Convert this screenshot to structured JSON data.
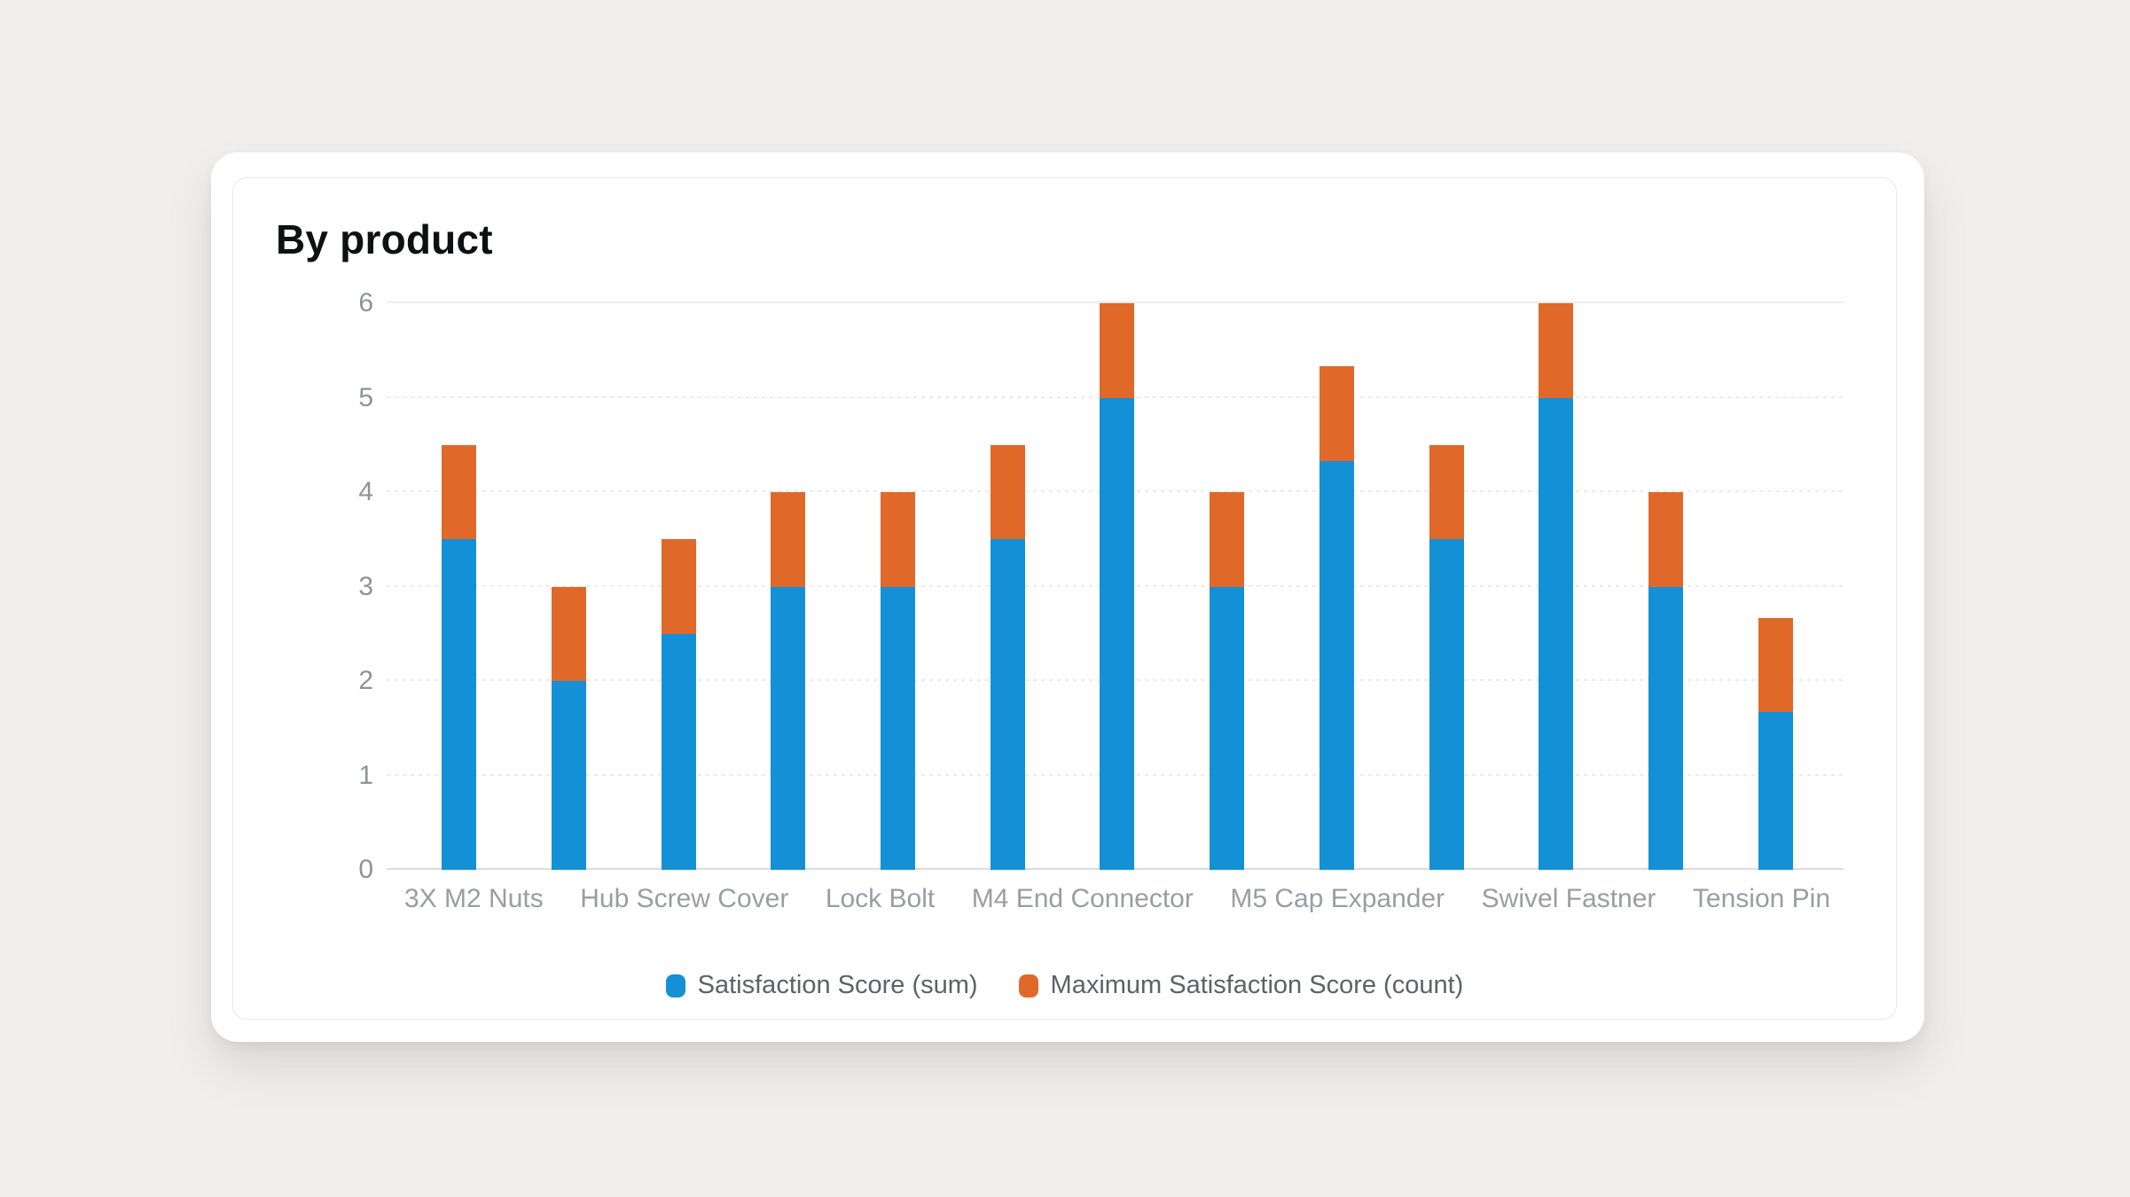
{
  "page": {
    "background": "#f0efed"
  },
  "card": {
    "title": "By product"
  },
  "legend": {
    "position": "bottom"
  },
  "chart_data": {
    "type": "bar",
    "stacked": true,
    "title": "By product",
    "xlabel": "",
    "ylabel": "",
    "grid": true,
    "legend_position": "bottom",
    "categories": [
      "3X M2 Nuts",
      "",
      "Hub Screw Cover",
      "",
      "Lock Bolt",
      "",
      "M4 End Connector",
      "",
      "M5 Cap Expander",
      "",
      "Swivel Fastner",
      "",
      "Tension Pin"
    ],
    "series": [
      {
        "name": "Satisfaction Score (sum)",
        "color": "#1390d6",
        "values": [
          3.5,
          2,
          2.5,
          3,
          3,
          3.5,
          5,
          3,
          4.33,
          3.5,
          5,
          3,
          1.67
        ]
      },
      {
        "name": "Maximum Satisfaction Score (count)",
        "color": "#e0692a",
        "values": [
          1,
          1,
          1,
          1,
          1,
          1,
          1,
          1,
          1,
          1,
          1,
          1,
          1
        ]
      }
    ],
    "y_axis": {
      "min": 0,
      "max": 6,
      "ticks": [
        0,
        1,
        2,
        3,
        4,
        5,
        6
      ]
    }
  }
}
